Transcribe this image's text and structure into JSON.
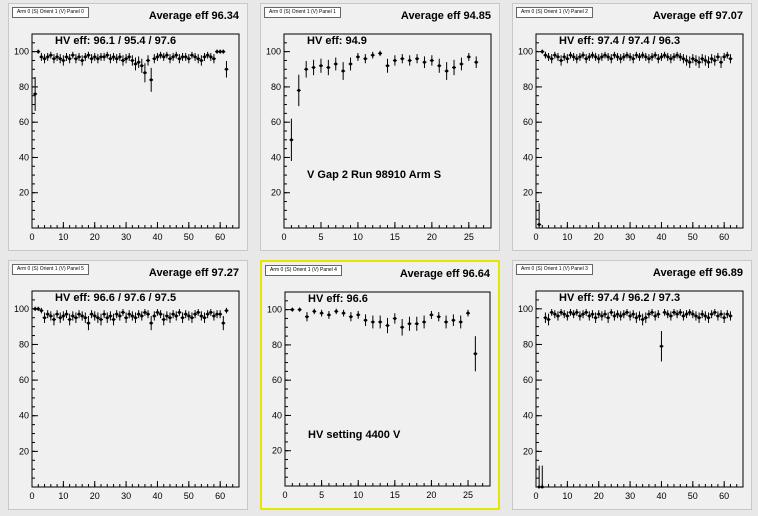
{
  "chart_data": [
    {
      "type": "scatter",
      "panel_tag": "Arm 0 (S) Orient 1 (V) Panel 0",
      "title": "Average eff 96.34",
      "annotations": [
        "HV eff:   96.1 / 95.4 / 97.6"
      ],
      "xlim": [
        0,
        66
      ],
      "ylim": [
        0,
        110
      ],
      "xticks": [
        0,
        10,
        20,
        30,
        40,
        50,
        60
      ],
      "yticks": [
        20,
        40,
        60,
        80,
        100
      ],
      "grid": false,
      "series": [
        {
          "x": [
            1,
            2,
            3,
            4,
            5,
            6,
            7,
            8,
            9,
            10,
            11,
            12,
            13,
            14,
            15,
            16,
            17,
            18,
            19,
            20,
            21,
            22,
            23,
            24,
            25,
            26,
            27,
            28,
            29,
            30,
            31,
            32,
            33,
            34,
            35,
            36,
            37,
            38,
            39,
            40,
            41,
            42,
            43,
            44,
            45,
            46,
            47,
            48,
            49,
            50,
            51,
            52,
            53,
            54,
            55,
            56,
            57,
            58,
            59,
            60,
            61,
            62
          ],
          "y": [
            76,
            100,
            97,
            96,
            97,
            98,
            96,
            97,
            96,
            95,
            97,
            96,
            98,
            96,
            97,
            95,
            97,
            98,
            96,
            97,
            96,
            97,
            97,
            98,
            96,
            97,
            96,
            97,
            95,
            96,
            97,
            95,
            93,
            94,
            92,
            88,
            95,
            84,
            96,
            97,
            98,
            97,
            98,
            96,
            97,
            98,
            96,
            97,
            97,
            96,
            98,
            97,
            96,
            95,
            97,
            98,
            97,
            96,
            100,
            100,
            100,
            90
          ]
        }
      ]
    },
    {
      "type": "scatter",
      "panel_tag": "Arm 0 (S) Orient 1 (V) Panel 1",
      "title": "Average eff 94.85",
      "annotations": [
        "HV eff:   94.9",
        "V Gap 2 Run 98910 Arm S"
      ],
      "xlim": [
        0,
        28
      ],
      "ylim": [
        0,
        110
      ],
      "xticks": [
        0,
        5,
        10,
        15,
        20,
        25
      ],
      "yticks": [
        20,
        40,
        60,
        80,
        100
      ],
      "grid": false,
      "series": [
        {
          "x": [
            1,
            2,
            3,
            4,
            5,
            6,
            7,
            8,
            9,
            10,
            11,
            12,
            13,
            14,
            15,
            16,
            17,
            18,
            19,
            20,
            21,
            22,
            23,
            24,
            25,
            26
          ],
          "y": [
            50,
            78,
            90,
            91,
            92,
            91,
            93,
            89,
            93,
            97,
            96,
            98,
            99,
            92,
            95,
            96,
            95,
            96,
            94,
            95,
            92,
            89,
            91,
            93,
            97,
            94
          ]
        }
      ]
    },
    {
      "type": "scatter",
      "panel_tag": "Arm 0 (S) Orient 1 (V) Panel 2",
      "title": "Average eff 97.07",
      "annotations": [
        "HV eff:   97.4 / 97.4 / 96.3"
      ],
      "xlim": [
        0,
        66
      ],
      "ylim": [
        0,
        110
      ],
      "xticks": [
        0,
        10,
        20,
        30,
        40,
        50,
        60
      ],
      "yticks": [
        20,
        40,
        60,
        80,
        100
      ],
      "grid": false,
      "series": [
        {
          "x": [
            1,
            2,
            3,
            4,
            5,
            6,
            7,
            8,
            9,
            10,
            11,
            12,
            13,
            14,
            15,
            16,
            17,
            18,
            19,
            20,
            21,
            22,
            23,
            24,
            25,
            26,
            27,
            28,
            29,
            30,
            31,
            32,
            33,
            34,
            35,
            36,
            37,
            38,
            39,
            40,
            41,
            42,
            43,
            44,
            45,
            46,
            47,
            48,
            49,
            50,
            51,
            52,
            53,
            54,
            55,
            56,
            57,
            58,
            59,
            60,
            61,
            62
          ],
          "y": [
            2,
            100,
            98,
            97,
            96,
            98,
            97,
            95,
            97,
            96,
            98,
            97,
            96,
            97,
            98,
            96,
            97,
            98,
            97,
            96,
            97,
            98,
            97,
            96,
            98,
            97,
            96,
            97,
            98,
            97,
            96,
            98,
            97,
            98,
            97,
            96,
            97,
            98,
            96,
            97,
            98,
            97,
            96,
            97,
            98,
            97,
            96,
            95,
            94,
            96,
            95,
            94,
            96,
            95,
            94,
            96,
            95,
            97,
            94,
            97,
            98,
            96
          ]
        }
      ]
    },
    {
      "type": "scatter",
      "panel_tag": "Arm 0 (S) Orient 1 (V) Panel 5",
      "title": "Average eff 97.27",
      "annotations": [
        "HV eff:   96.6 / 97.6 / 97.5"
      ],
      "xlim": [
        0,
        66
      ],
      "ylim": [
        0,
        110
      ],
      "xticks": [
        0,
        10,
        20,
        30,
        40,
        50,
        60
      ],
      "yticks": [
        20,
        40,
        60,
        80,
        100
      ],
      "grid": false,
      "series": [
        {
          "x": [
            1,
            2,
            3,
            4,
            5,
            6,
            7,
            8,
            9,
            10,
            11,
            12,
            13,
            14,
            15,
            16,
            17,
            18,
            19,
            20,
            21,
            22,
            23,
            24,
            25,
            26,
            27,
            28,
            29,
            30,
            31,
            32,
            33,
            34,
            35,
            36,
            37,
            38,
            39,
            40,
            41,
            42,
            43,
            44,
            45,
            46,
            47,
            48,
            49,
            50,
            51,
            52,
            53,
            54,
            55,
            56,
            57,
            58,
            59,
            60,
            61,
            62
          ],
          "y": [
            100,
            100,
            99,
            95,
            97,
            96,
            94,
            97,
            95,
            96,
            97,
            94,
            96,
            95,
            97,
            96,
            95,
            92,
            97,
            96,
            95,
            94,
            97,
            95,
            96,
            94,
            97,
            96,
            98,
            95,
            97,
            96,
            95,
            97,
            96,
            98,
            97,
            92,
            96,
            98,
            97,
            94,
            96,
            95,
            97,
            96,
            98,
            95,
            97,
            96,
            95,
            97,
            98,
            96,
            95,
            97,
            98,
            96,
            97,
            97,
            92,
            99
          ]
        }
      ]
    },
    {
      "type": "scatter",
      "panel_tag": "Arm 0 (S) Orient 1 (V) Panel 4",
      "title": "Average eff 96.64",
      "annotations": [
        "HV eff:   96.6",
        "HV setting 4400 V"
      ],
      "xlim": [
        0,
        28
      ],
      "ylim": [
        0,
        110
      ],
      "xticks": [
        0,
        5,
        10,
        15,
        20,
        25
      ],
      "yticks": [
        20,
        40,
        60,
        80,
        100
      ],
      "grid": false,
      "series": [
        {
          "x": [
            1,
            2,
            3,
            4,
            5,
            6,
            7,
            8,
            9,
            10,
            11,
            12,
            13,
            14,
            15,
            16,
            17,
            18,
            19,
            20,
            21,
            22,
            23,
            24,
            25,
            26
          ],
          "y": [
            100,
            100,
            96,
            99,
            98,
            97,
            99,
            98,
            96,
            97,
            94,
            93,
            93,
            91,
            95,
            90,
            92,
            92,
            93,
            97,
            96,
            93,
            94,
            93,
            98,
            75
          ]
        }
      ]
    },
    {
      "type": "scatter",
      "panel_tag": "Arm 0 (S) Orient 1 (V) Panel 3",
      "title": "Average eff 96.89",
      "annotations": [
        "HV eff:   97.4 / 96.2 / 97.3"
      ],
      "xlim": [
        0,
        66
      ],
      "ylim": [
        0,
        110
      ],
      "xticks": [
        0,
        10,
        20,
        30,
        40,
        50,
        60
      ],
      "yticks": [
        20,
        40,
        60,
        80,
        100
      ],
      "grid": false,
      "series": [
        {
          "x": [
            1,
            2,
            3,
            4,
            5,
            6,
            7,
            8,
            9,
            10,
            11,
            12,
            13,
            14,
            15,
            16,
            17,
            18,
            19,
            20,
            21,
            22,
            23,
            24,
            25,
            26,
            27,
            28,
            29,
            30,
            31,
            32,
            33,
            34,
            35,
            36,
            37,
            38,
            39,
            40,
            41,
            42,
            43,
            44,
            45,
            46,
            47,
            48,
            49,
            50,
            51,
            52,
            53,
            54,
            55,
            56,
            57,
            58,
            59,
            60,
            61,
            62
          ],
          "y": [
            0,
            0,
            95,
            94,
            98,
            97,
            96,
            98,
            97,
            96,
            98,
            97,
            98,
            96,
            97,
            98,
            96,
            97,
            95,
            97,
            96,
            97,
            95,
            98,
            96,
            97,
            96,
            97,
            98,
            96,
            97,
            95,
            96,
            94,
            95,
            97,
            98,
            96,
            97,
            79,
            98,
            97,
            96,
            98,
            97,
            98,
            96,
            97,
            98,
            97,
            96,
            95,
            97,
            96,
            95,
            97,
            98,
            96,
            97,
            95,
            97,
            96
          ]
        }
      ]
    }
  ]
}
